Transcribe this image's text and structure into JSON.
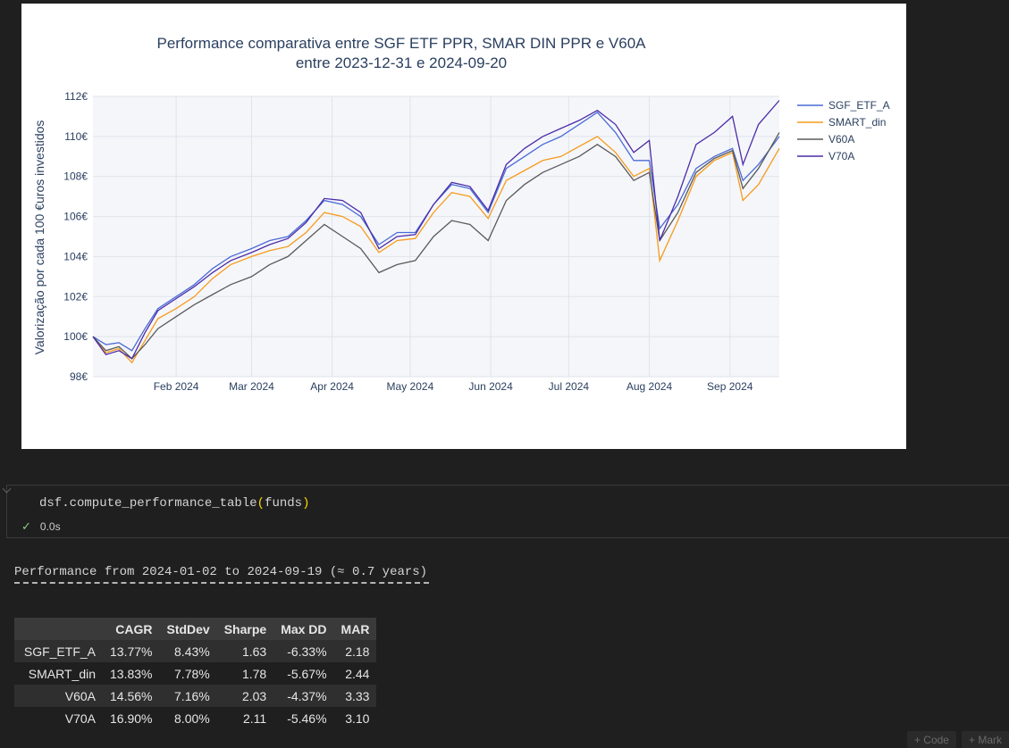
{
  "chart_data": {
    "type": "line",
    "title_lines": [
      "Performance comparativa entre SGF ETF PPR, SMAR DIN PPR e V60A",
      "entre 2023-12-31 e 2024-09-20"
    ],
    "ylabel": "Valorização por cada 100 €uros investidos",
    "xlabel": "",
    "x_start": "2023-12-31",
    "x_end": "2024-09-20",
    "ylim": [
      98,
      112
    ],
    "y_ticks": [
      98,
      100,
      102,
      104,
      106,
      108,
      110,
      112
    ],
    "y_tick_labels": [
      "98€",
      "100€",
      "102€",
      "104€",
      "106€",
      "108€",
      "110€",
      "112€"
    ],
    "x_ticks": [
      "2024-02-01",
      "2024-03-01",
      "2024-04-01",
      "2024-05-01",
      "2024-06-01",
      "2024-07-01",
      "2024-08-01",
      "2024-09-01"
    ],
    "x_tick_labels": [
      "Feb 2024",
      "Mar 2024",
      "Apr 2024",
      "May 2024",
      "Jun 2024",
      "Jul 2024",
      "Aug 2024",
      "Sep 2024"
    ],
    "grid": true,
    "legend_position": "top-right",
    "series": [
      {
        "name": "SGF_ETF_A",
        "color": "#4a6bd6",
        "points": [
          [
            "2023-12-31",
            100.0
          ],
          [
            "2024-01-05",
            99.6
          ],
          [
            "2024-01-10",
            99.7
          ],
          [
            "2024-01-15",
            99.3
          ],
          [
            "2024-01-20",
            100.4
          ],
          [
            "2024-01-25",
            101.4
          ],
          [
            "2024-02-01",
            102.0
          ],
          [
            "2024-02-08",
            102.6
          ],
          [
            "2024-02-15",
            103.4
          ],
          [
            "2024-02-22",
            104.0
          ],
          [
            "2024-03-01",
            104.4
          ],
          [
            "2024-03-08",
            104.8
          ],
          [
            "2024-03-15",
            105.0
          ],
          [
            "2024-03-22",
            105.8
          ],
          [
            "2024-03-29",
            106.8
          ],
          [
            "2024-04-05",
            106.6
          ],
          [
            "2024-04-12",
            106.0
          ],
          [
            "2024-04-19",
            104.6
          ],
          [
            "2024-04-26",
            105.2
          ],
          [
            "2024-05-03",
            105.2
          ],
          [
            "2024-05-10",
            106.6
          ],
          [
            "2024-05-17",
            107.6
          ],
          [
            "2024-05-24",
            107.4
          ],
          [
            "2024-05-31",
            106.2
          ],
          [
            "2024-06-07",
            108.4
          ],
          [
            "2024-06-14",
            109.0
          ],
          [
            "2024-06-21",
            109.6
          ],
          [
            "2024-06-28",
            110.0
          ],
          [
            "2024-07-05",
            110.6
          ],
          [
            "2024-07-12",
            111.2
          ],
          [
            "2024-07-19",
            110.2
          ],
          [
            "2024-07-26",
            108.8
          ],
          [
            "2024-08-01",
            108.8
          ],
          [
            "2024-08-05",
            105.4
          ],
          [
            "2024-08-12",
            106.6
          ],
          [
            "2024-08-19",
            108.4
          ],
          [
            "2024-08-26",
            109.0
          ],
          [
            "2024-09-02",
            109.4
          ],
          [
            "2024-09-06",
            107.8
          ],
          [
            "2024-09-12",
            108.6
          ],
          [
            "2024-09-20",
            110.0
          ]
        ]
      },
      {
        "name": "SMART_din",
        "color": "#f59b1c",
        "points": [
          [
            "2023-12-31",
            100.0
          ],
          [
            "2024-01-05",
            99.2
          ],
          [
            "2024-01-10",
            99.4
          ],
          [
            "2024-01-15",
            98.7
          ],
          [
            "2024-01-20",
            99.8
          ],
          [
            "2024-01-25",
            100.9
          ],
          [
            "2024-02-01",
            101.4
          ],
          [
            "2024-02-08",
            102.0
          ],
          [
            "2024-02-15",
            102.9
          ],
          [
            "2024-02-22",
            103.6
          ],
          [
            "2024-03-01",
            104.0
          ],
          [
            "2024-03-08",
            104.3
          ],
          [
            "2024-03-15",
            104.5
          ],
          [
            "2024-03-22",
            105.2
          ],
          [
            "2024-03-29",
            106.2
          ],
          [
            "2024-04-05",
            106.0
          ],
          [
            "2024-04-12",
            105.5
          ],
          [
            "2024-04-19",
            104.2
          ],
          [
            "2024-04-26",
            104.8
          ],
          [
            "2024-05-03",
            104.9
          ],
          [
            "2024-05-10",
            106.2
          ],
          [
            "2024-05-17",
            107.2
          ],
          [
            "2024-05-24",
            107.0
          ],
          [
            "2024-05-31",
            105.9
          ],
          [
            "2024-06-07",
            107.8
          ],
          [
            "2024-06-14",
            108.3
          ],
          [
            "2024-06-21",
            108.8
          ],
          [
            "2024-06-28",
            109.0
          ],
          [
            "2024-07-05",
            109.5
          ],
          [
            "2024-07-12",
            110.0
          ],
          [
            "2024-07-19",
            109.2
          ],
          [
            "2024-07-26",
            108.0
          ],
          [
            "2024-08-01",
            108.4
          ],
          [
            "2024-08-05",
            103.8
          ],
          [
            "2024-08-12",
            105.8
          ],
          [
            "2024-08-19",
            108.0
          ],
          [
            "2024-08-26",
            108.8
          ],
          [
            "2024-09-02",
            109.2
          ],
          [
            "2024-09-06",
            106.8
          ],
          [
            "2024-09-12",
            107.6
          ],
          [
            "2024-09-20",
            109.4
          ]
        ]
      },
      {
        "name": "V60A",
        "color": "#5a5a5a",
        "points": [
          [
            "2023-12-31",
            100.0
          ],
          [
            "2024-01-05",
            99.3
          ],
          [
            "2024-01-10",
            99.5
          ],
          [
            "2024-01-15",
            98.9
          ],
          [
            "2024-01-20",
            99.6
          ],
          [
            "2024-01-25",
            100.4
          ],
          [
            "2024-02-01",
            101.0
          ],
          [
            "2024-02-08",
            101.6
          ],
          [
            "2024-02-15",
            102.1
          ],
          [
            "2024-02-22",
            102.6
          ],
          [
            "2024-03-01",
            103.0
          ],
          [
            "2024-03-08",
            103.6
          ],
          [
            "2024-03-15",
            104.0
          ],
          [
            "2024-03-22",
            104.8
          ],
          [
            "2024-03-29",
            105.6
          ],
          [
            "2024-04-05",
            105.0
          ],
          [
            "2024-04-12",
            104.4
          ],
          [
            "2024-04-19",
            103.2
          ],
          [
            "2024-04-26",
            103.6
          ],
          [
            "2024-05-03",
            103.8
          ],
          [
            "2024-05-10",
            105.0
          ],
          [
            "2024-05-17",
            105.8
          ],
          [
            "2024-05-24",
            105.6
          ],
          [
            "2024-05-31",
            104.8
          ],
          [
            "2024-06-07",
            106.8
          ],
          [
            "2024-06-14",
            107.6
          ],
          [
            "2024-06-21",
            108.2
          ],
          [
            "2024-06-28",
            108.6
          ],
          [
            "2024-07-05",
            109.0
          ],
          [
            "2024-07-12",
            109.6
          ],
          [
            "2024-07-19",
            109.0
          ],
          [
            "2024-07-26",
            107.8
          ],
          [
            "2024-08-01",
            108.2
          ],
          [
            "2024-08-05",
            104.8
          ],
          [
            "2024-08-12",
            106.2
          ],
          [
            "2024-08-19",
            108.2
          ],
          [
            "2024-08-26",
            108.9
          ],
          [
            "2024-09-02",
            109.3
          ],
          [
            "2024-09-06",
            107.4
          ],
          [
            "2024-09-12",
            108.4
          ],
          [
            "2024-09-20",
            110.2
          ]
        ]
      },
      {
        "name": "V70A",
        "color": "#4b2ca8",
        "points": [
          [
            "2023-12-31",
            100.0
          ],
          [
            "2024-01-05",
            99.1
          ],
          [
            "2024-01-10",
            99.3
          ],
          [
            "2024-01-15",
            98.9
          ],
          [
            "2024-01-20",
            100.2
          ],
          [
            "2024-01-25",
            101.3
          ],
          [
            "2024-02-01",
            101.9
          ],
          [
            "2024-02-08",
            102.5
          ],
          [
            "2024-02-15",
            103.2
          ],
          [
            "2024-02-22",
            103.8
          ],
          [
            "2024-03-01",
            104.2
          ],
          [
            "2024-03-08",
            104.6
          ],
          [
            "2024-03-15",
            104.9
          ],
          [
            "2024-03-22",
            105.7
          ],
          [
            "2024-03-29",
            106.9
          ],
          [
            "2024-04-05",
            106.8
          ],
          [
            "2024-04-12",
            106.2
          ],
          [
            "2024-04-19",
            104.4
          ],
          [
            "2024-04-26",
            105.0
          ],
          [
            "2024-05-03",
            105.1
          ],
          [
            "2024-05-10",
            106.6
          ],
          [
            "2024-05-17",
            107.7
          ],
          [
            "2024-05-24",
            107.5
          ],
          [
            "2024-05-31",
            106.3
          ],
          [
            "2024-06-07",
            108.6
          ],
          [
            "2024-06-14",
            109.4
          ],
          [
            "2024-06-21",
            110.0
          ],
          [
            "2024-06-28",
            110.4
          ],
          [
            "2024-07-05",
            110.8
          ],
          [
            "2024-07-12",
            111.3
          ],
          [
            "2024-07-19",
            110.6
          ],
          [
            "2024-07-26",
            109.2
          ],
          [
            "2024-08-01",
            109.8
          ],
          [
            "2024-08-05",
            104.8
          ],
          [
            "2024-08-12",
            107.0
          ],
          [
            "2024-08-19",
            109.6
          ],
          [
            "2024-08-26",
            110.2
          ],
          [
            "2024-09-02",
            111.0
          ],
          [
            "2024-09-06",
            108.6
          ],
          [
            "2024-09-12",
            110.6
          ],
          [
            "2024-09-20",
            111.8
          ]
        ]
      }
    ]
  },
  "code_cell": {
    "fn": "dsf.compute_performance_table",
    "open_paren": "(",
    "arg": "funds",
    "close_paren": ")",
    "exec_time": "0.0s"
  },
  "output": {
    "header": "Performance from 2024-01-02 to 2024-09-19 (≈ 0.7 years)",
    "table": {
      "columns": [
        "",
        "CAGR",
        "StdDev",
        "Sharpe",
        "Max DD",
        "MAR"
      ],
      "rows": [
        [
          "SGF_ETF_A",
          "13.77%",
          "8.43%",
          "1.63",
          "-6.33%",
          "2.18"
        ],
        [
          "SMART_din",
          "13.83%",
          "7.78%",
          "1.78",
          "-5.67%",
          "2.44"
        ],
        [
          "V60A",
          "14.56%",
          "7.16%",
          "2.03",
          "-4.37%",
          "3.33"
        ],
        [
          "V70A",
          "16.90%",
          "8.00%",
          "2.11",
          "-5.46%",
          "3.10"
        ]
      ]
    }
  },
  "toolbar": {
    "code_label": "+ Code",
    "markdown_label": "+ Mark"
  }
}
